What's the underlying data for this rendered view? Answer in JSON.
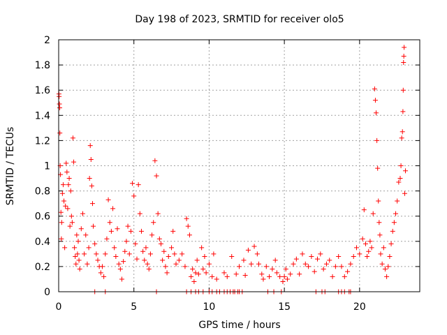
{
  "chart_data": {
    "type": "scatter",
    "title": "Day 198 of 2023, SRMTID for receiver olo5",
    "xlabel": "GPS time / hours",
    "ylabel": "SRMTID / TECUs",
    "xlim": [
      0,
      24
    ],
    "ylim": [
      0,
      2
    ],
    "x_ticks": [
      0,
      5,
      10,
      15,
      20
    ],
    "y_ticks": [
      0,
      0.2,
      0.4,
      0.6,
      0.8,
      1,
      1.2,
      1.4,
      1.6,
      1.8,
      2
    ],
    "x_tick_labels": [
      "0",
      "5",
      "10",
      "15",
      "20"
    ],
    "y_tick_labels": [
      "0",
      "0.2",
      "0.4",
      "0.6",
      "0.8",
      "1",
      "1.2",
      "1.4",
      "1.6",
      "1.8",
      "2"
    ],
    "grid": true,
    "marker": "+",
    "series": [
      {
        "name": "SRMTID",
        "color": "#ff0000",
        "points": [
          [
            0.02,
            1.57
          ],
          [
            0.03,
            1.55
          ],
          [
            0.05,
            1.49
          ],
          [
            0.07,
            1.46
          ],
          [
            0.08,
            1.26
          ],
          [
            0.1,
            1.0
          ],
          [
            0.12,
            0.93
          ],
          [
            0.15,
            0.63
          ],
          [
            0.18,
            0.42
          ],
          [
            0.2,
            0.55
          ],
          [
            0.25,
            0.78
          ],
          [
            0.3,
            0.85
          ],
          [
            0.35,
            0.72
          ],
          [
            0.4,
            0.35
          ],
          [
            0.45,
            0.68
          ],
          [
            0.5,
            1.02
          ],
          [
            0.55,
            0.95
          ],
          [
            0.6,
            0.66
          ],
          [
            0.65,
            0.85
          ],
          [
            0.7,
            0.9
          ],
          [
            0.75,
            0.52
          ],
          [
            0.8,
            0.8
          ],
          [
            0.85,
            0.6
          ],
          [
            0.9,
            0.55
          ],
          [
            0.95,
            1.22
          ],
          [
            1.0,
            1.03
          ],
          [
            1.05,
            0.35
          ],
          [
            1.1,
            0.28
          ],
          [
            1.15,
            0.22
          ],
          [
            1.2,
            0.45
          ],
          [
            1.25,
            0.3
          ],
          [
            1.3,
            0.4
          ],
          [
            1.35,
            0.25
          ],
          [
            1.4,
            0.18
          ],
          [
            1.5,
            0.5
          ],
          [
            1.6,
            0.62
          ],
          [
            1.7,
            0.3
          ],
          [
            1.8,
            0.45
          ],
          [
            1.9,
            0.22
          ],
          [
            2.0,
            0.35
          ],
          [
            2.05,
            0.9
          ],
          [
            2.1,
            1.16
          ],
          [
            2.15,
            1.05
          ],
          [
            2.2,
            0.84
          ],
          [
            2.25,
            0.7
          ],
          [
            2.3,
            0.52
          ],
          [
            2.4,
            0.38
          ],
          [
            2.5,
            0.3
          ],
          [
            2.6,
            0.25
          ],
          [
            2.7,
            0.2
          ],
          [
            2.8,
            0.15
          ],
          [
            2.9,
            0.2
          ],
          [
            3.0,
            0.12
          ],
          [
            3.1,
            0.3
          ],
          [
            3.2,
            0.42
          ],
          [
            3.3,
            0.73
          ],
          [
            3.4,
            0.55
          ],
          [
            3.5,
            0.48
          ],
          [
            3.6,
            0.66
          ],
          [
            3.7,
            0.35
          ],
          [
            3.8,
            0.28
          ],
          [
            3.9,
            0.5
          ],
          [
            4.0,
            0.22
          ],
          [
            4.1,
            0.18
          ],
          [
            4.2,
            0.1
          ],
          [
            4.3,
            0.24
          ],
          [
            4.4,
            0.32
          ],
          [
            4.5,
            0.4
          ],
          [
            4.6,
            0.52
          ],
          [
            4.7,
            0.3
          ],
          [
            4.8,
            0.48
          ],
          [
            4.9,
            0.86
          ],
          [
            5.0,
            0.76
          ],
          [
            5.1,
            0.38
          ],
          [
            5.2,
            0.26
          ],
          [
            5.3,
            0.85
          ],
          [
            5.4,
            0.62
          ],
          [
            5.5,
            0.48
          ],
          [
            5.6,
            0.32
          ],
          [
            5.7,
            0.25
          ],
          [
            5.8,
            0.35
          ],
          [
            5.9,
            0.22
          ],
          [
            6.0,
            0.18
          ],
          [
            6.1,
            0.3
          ],
          [
            6.2,
            0.45
          ],
          [
            6.3,
            0.55
          ],
          [
            6.4,
            1.04
          ],
          [
            6.5,
            0.92
          ],
          [
            6.6,
            0.62
          ],
          [
            6.7,
            0.42
          ],
          [
            6.8,
            0.38
          ],
          [
            6.9,
            0.25
          ],
          [
            7.0,
            0.32
          ],
          [
            7.1,
            0.2
          ],
          [
            7.2,
            0.15
          ],
          [
            7.3,
            0.28
          ],
          [
            7.5,
            0.35
          ],
          [
            7.6,
            0.48
          ],
          [
            7.7,
            0.3
          ],
          [
            7.8,
            0.22
          ],
          [
            8.0,
            0.25
          ],
          [
            8.2,
            0.3
          ],
          [
            8.4,
            0.2
          ],
          [
            8.5,
            0.58
          ],
          [
            8.6,
            0.52
          ],
          [
            8.7,
            0.45
          ],
          [
            8.8,
            0.12
          ],
          [
            8.9,
            0.18
          ],
          [
            9.0,
            0.08
          ],
          [
            9.1,
            0.15
          ],
          [
            9.2,
            0.25
          ],
          [
            9.3,
            0.14
          ],
          [
            9.5,
            0.35
          ],
          [
            9.6,
            0.18
          ],
          [
            9.7,
            0.28
          ],
          [
            9.8,
            0.15
          ],
          [
            10.0,
            0.22
          ],
          [
            10.2,
            0.12
          ],
          [
            10.3,
            0.3
          ],
          [
            10.5,
            0.1
          ],
          [
            11.0,
            0.15
          ],
          [
            11.2,
            0.12
          ],
          [
            11.5,
            0.28
          ],
          [
            11.8,
            0.14
          ],
          [
            12.0,
            0.2
          ],
          [
            12.3,
            0.25
          ],
          [
            12.4,
            0.13
          ],
          [
            12.6,
            0.33
          ],
          [
            12.8,
            0.22
          ],
          [
            13.0,
            0.36
          ],
          [
            13.2,
            0.3
          ],
          [
            13.3,
            0.22
          ],
          [
            13.5,
            0.14
          ],
          [
            13.6,
            0.1
          ],
          [
            13.8,
            0.2
          ],
          [
            14.0,
            0.12
          ],
          [
            14.2,
            0.18
          ],
          [
            14.4,
            0.25
          ],
          [
            14.5,
            0.15
          ],
          [
            14.7,
            0.12
          ],
          [
            14.9,
            0.08
          ],
          [
            15.0,
            0.12
          ],
          [
            15.1,
            0.18
          ],
          [
            15.2,
            0.1
          ],
          [
            15.4,
            0.14
          ],
          [
            15.6,
            0.22
          ],
          [
            15.8,
            0.26
          ],
          [
            16.0,
            0.14
          ],
          [
            16.2,
            0.3
          ],
          [
            16.4,
            0.22
          ],
          [
            16.6,
            0.2
          ],
          [
            16.8,
            0.28
          ],
          [
            17.0,
            0.16
          ],
          [
            17.2,
            0.26
          ],
          [
            17.4,
            0.3
          ],
          [
            17.6,
            0.18
          ],
          [
            17.8,
            0.22
          ],
          [
            18.0,
            0.25
          ],
          [
            18.2,
            0.12
          ],
          [
            18.4,
            0.2
          ],
          [
            18.6,
            0.28
          ],
          [
            18.8,
            0.2
          ],
          [
            19.0,
            0.12
          ],
          [
            19.2,
            0.16
          ],
          [
            19.4,
            0.22
          ],
          [
            19.6,
            0.28
          ],
          [
            19.8,
            0.35
          ],
          [
            20.0,
            0.3
          ],
          [
            20.2,
            0.42
          ],
          [
            20.3,
            0.65
          ],
          [
            20.4,
            0.38
          ],
          [
            20.5,
            0.28
          ],
          [
            20.6,
            0.32
          ],
          [
            20.7,
            0.4
          ],
          [
            20.8,
            0.35
          ],
          [
            20.9,
            0.62
          ],
          [
            21.0,
            1.61
          ],
          [
            21.05,
            1.52
          ],
          [
            21.1,
            1.42
          ],
          [
            21.15,
            1.2
          ],
          [
            21.2,
            0.98
          ],
          [
            21.25,
            0.72
          ],
          [
            21.3,
            0.55
          ],
          [
            21.35,
            0.45
          ],
          [
            21.4,
            0.3
          ],
          [
            21.5,
            0.22
          ],
          [
            21.6,
            0.35
          ],
          [
            21.7,
            0.18
          ],
          [
            21.8,
            0.12
          ],
          [
            21.9,
            0.2
          ],
          [
            22.0,
            0.28
          ],
          [
            22.1,
            0.38
          ],
          [
            22.2,
            0.48
          ],
          [
            22.3,
            0.55
          ],
          [
            22.4,
            0.62
          ],
          [
            22.5,
            0.72
          ],
          [
            22.6,
            0.87
          ],
          [
            22.7,
            0.9
          ],
          [
            22.75,
            1.0
          ],
          [
            22.8,
            1.22
          ],
          [
            22.85,
            1.27
          ],
          [
            22.88,
            1.43
          ],
          [
            22.9,
            1.6
          ],
          [
            22.92,
            1.82
          ],
          [
            22.94,
            1.87
          ],
          [
            22.96,
            1.94
          ],
          [
            23.0,
            0.78
          ],
          [
            23.05,
            0.96
          ]
        ]
      }
    ],
    "zero_points": [
      2.4,
      3.1,
      6.5,
      8.5,
      8.8,
      9.1,
      9.3,
      9.6,
      10.0,
      10.2,
      10.5,
      10.7,
      11.0,
      11.2,
      11.4,
      11.6,
      11.7,
      11.9,
      12.0,
      12.2,
      13.9,
      14.3,
      14.8,
      17.1,
      17.5,
      17.7,
      18.6,
      18.8,
      19.0,
      19.3,
      19.4
    ]
  }
}
